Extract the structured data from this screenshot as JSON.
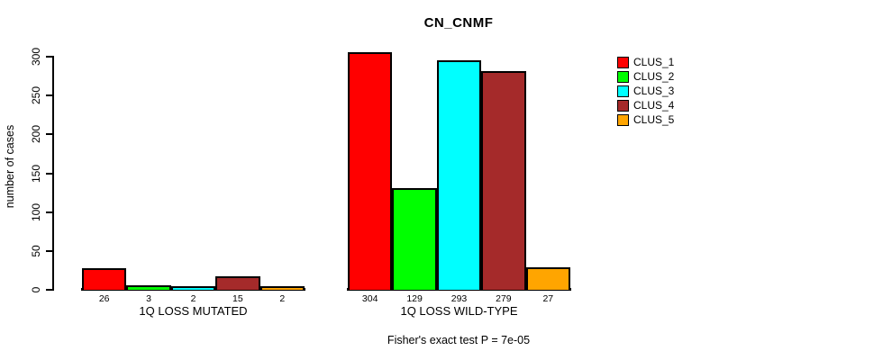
{
  "chart_data": {
    "type": "bar",
    "title": "CN_CNMF",
    "ylabel": "number of cases",
    "xlabel": "",
    "ylim": [
      0,
      300
    ],
    "yticks": [
      0,
      50,
      100,
      150,
      200,
      250,
      300
    ],
    "categories": [
      "1Q LOSS MUTATED",
      "1Q LOSS WILD-TYPE"
    ],
    "series": [
      {
        "name": "CLUS_1",
        "color": "#FF0000",
        "values": [
          26,
          304
        ]
      },
      {
        "name": "CLUS_2",
        "color": "#00FF00",
        "values": [
          3,
          129
        ]
      },
      {
        "name": "CLUS_3",
        "color": "#00FFFF",
        "values": [
          2,
          293
        ]
      },
      {
        "name": "CLUS_4",
        "color": "#A52A2A",
        "values": [
          15,
          279
        ]
      },
      {
        "name": "CLUS_5",
        "color": "#FFA500",
        "values": [
          2,
          27
        ]
      }
    ],
    "bar_value_labels": [
      [
        "26",
        "3",
        "2",
        "15",
        "2"
      ],
      [
        "304",
        "129",
        "293",
        "279",
        "27"
      ]
    ],
    "annotation": "Fisher's exact test P = 7e-05",
    "legend_position": "right",
    "grid": false,
    "colors": {
      "background": "#FFFFFF",
      "axis": "#000000",
      "text": "#000000"
    }
  }
}
